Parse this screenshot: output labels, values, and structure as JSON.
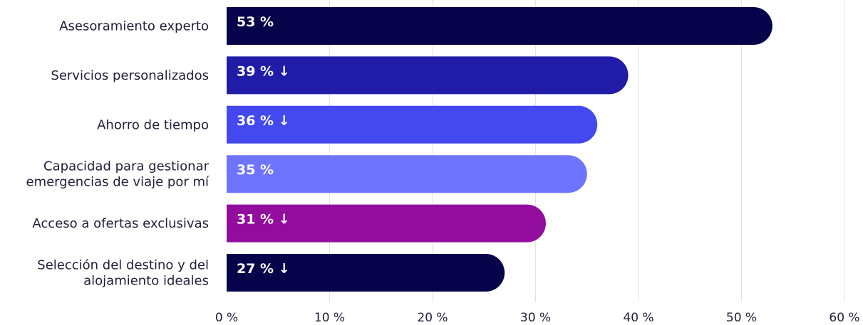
{
  "chart_data": {
    "type": "bar",
    "orientation": "horizontal",
    "categories": [
      [
        "Asesoramiento experto"
      ],
      [
        "Servicios personalizados"
      ],
      [
        "Ahorro de tiempo"
      ],
      [
        "Capacidad para gestionar",
        "emergencias de viaje por mí"
      ],
      [
        "Acceso a ofertas exclusivas"
      ],
      [
        "Selección del destino y del",
        "alojamiento ideales"
      ]
    ],
    "values": [
      53,
      39,
      36,
      35,
      31,
      27
    ],
    "data_labels": [
      "53 %",
      "39 % ↓",
      "36 % ↓",
      "35 %",
      "31 % ↓",
      "27 % ↓"
    ],
    "colors": [
      "#06034a",
      "#201ca8",
      "#4349ee",
      "#6f74ff",
      "#920d9e",
      "#06034a"
    ],
    "x_ticks": [
      0,
      10,
      20,
      30,
      40,
      50,
      60
    ],
    "x_tick_labels": [
      "0 %",
      "10 %",
      "20 %",
      "30 %",
      "40 %",
      "50 %",
      "60 %"
    ],
    "xlim": [
      0,
      60
    ],
    "grid": true,
    "title": "",
    "xlabel": "",
    "ylabel": ""
  }
}
